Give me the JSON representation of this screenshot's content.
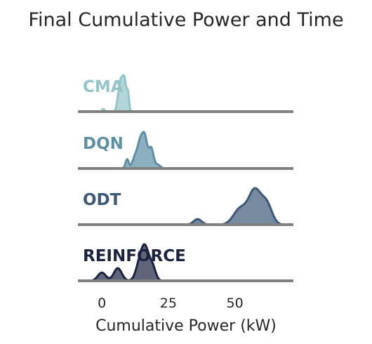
{
  "chart_data": {
    "type": "ridgeline",
    "title": "Final Cumulative Power and Time",
    "xlabel": "Cumulative Power (kW)",
    "xlim": [
      -9,
      72
    ],
    "xticks": [
      0,
      25,
      50
    ],
    "grid": false,
    "legend": "none (row labels)",
    "series": [
      {
        "name": "CMA",
        "color": "#93c4c8",
        "peak_height": 1.0,
        "components": [
          {
            "mean": 0.5,
            "sd": 0.5,
            "weight": 0.08
          },
          {
            "mean": 6.5,
            "sd": 0.7,
            "weight": 0.5
          },
          {
            "mean": 7.5,
            "sd": 0.7,
            "weight": 0.75
          },
          {
            "mean": 8.6,
            "sd": 0.6,
            "weight": 0.8
          },
          {
            "mean": 9.8,
            "sd": 0.45,
            "weight": 0.55
          }
        ]
      },
      {
        "name": "DQN",
        "color": "#5d8fa5",
        "peak_height": 1.0,
        "components": [
          {
            "mean": 9.5,
            "sd": 0.6,
            "weight": 0.25
          },
          {
            "mean": 12.5,
            "sd": 1.0,
            "weight": 0.3
          },
          {
            "mean": 14.5,
            "sd": 1.0,
            "weight": 0.7
          },
          {
            "mean": 16.2,
            "sd": 0.9,
            "weight": 0.75
          },
          {
            "mean": 18.5,
            "sd": 0.9,
            "weight": 0.55
          },
          {
            "mean": 21.0,
            "sd": 1.0,
            "weight": 0.1
          }
        ]
      },
      {
        "name": "ODT",
        "color": "#3e5878",
        "peak_height": 1.0,
        "components": [
          {
            "mean": 36.0,
            "sd": 1.5,
            "weight": 0.14
          },
          {
            "mean": 52.0,
            "sd": 2.5,
            "weight": 0.4
          },
          {
            "mean": 57.5,
            "sd": 2.3,
            "weight": 0.85
          },
          {
            "mean": 62.0,
            "sd": 2.0,
            "weight": 0.5
          }
        ]
      },
      {
        "name": "REINFORCE",
        "color": "#1c2340",
        "peak_height": 1.0,
        "components": [
          {
            "mean": 0.0,
            "sd": 1.5,
            "weight": 0.26
          },
          {
            "mean": 6.0,
            "sd": 1.5,
            "weight": 0.4
          },
          {
            "mean": 14.5,
            "sd": 1.5,
            "weight": 0.65
          },
          {
            "mean": 16.5,
            "sd": 1.3,
            "weight": 0.8
          },
          {
            "mean": 19.0,
            "sd": 1.2,
            "weight": 0.45
          }
        ]
      }
    ]
  }
}
